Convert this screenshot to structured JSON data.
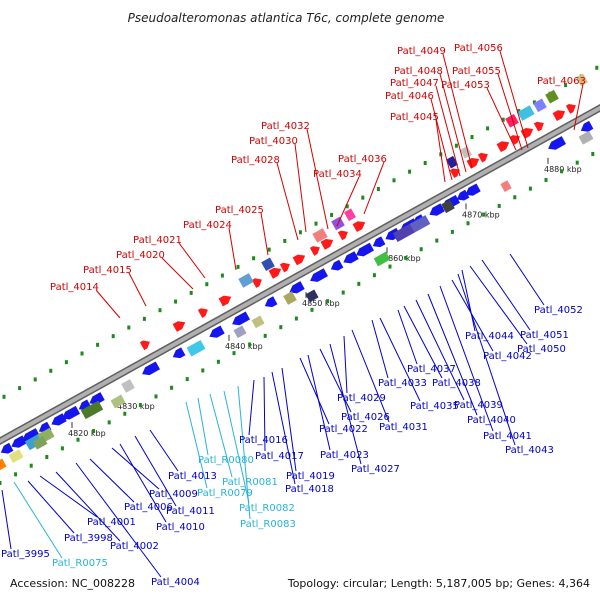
{
  "title": "Pseudoalteromonas atlantica T6c, complete genome",
  "footer": {
    "accession": "Accession: NC_008228",
    "summary": "Topology: circular; Length: 5,187,005 bp; Genes: 4,364"
  },
  "colors": {
    "top_label": "#d40000",
    "bottom_label": "#0000cc",
    "rna_label": "#27b4d6",
    "forward_gene": "#ff1a1a",
    "reverse_gene": "#1515ee",
    "rna_gene": "#40c8e8",
    "scale": "#b0b0b0",
    "tick": "#1e8a1e"
  },
  "scale_marks": [
    {
      "text": "4820 kbp"
    },
    {
      "text": "4830 kbp"
    },
    {
      "text": "4840 kbp"
    },
    {
      "text": "4850 kbp"
    },
    {
      "text": "4860 kbp"
    },
    {
      "text": "4870 kbp"
    },
    {
      "text": "4880 kbp"
    }
  ],
  "top_labels": [
    {
      "text": "Patl_4014"
    },
    {
      "text": "Patl_4015"
    },
    {
      "text": "Patl_4020"
    },
    {
      "text": "Patl_4021"
    },
    {
      "text": "Patl_4024"
    },
    {
      "text": "Patl_4025"
    },
    {
      "text": "Patl_4028"
    },
    {
      "text": "Patl_4030"
    },
    {
      "text": "Patl_4032"
    },
    {
      "text": "Patl_4034"
    },
    {
      "text": "Patl_4036"
    },
    {
      "text": "Patl_4045"
    },
    {
      "text": "Patl_4046"
    },
    {
      "text": "Patl_4047"
    },
    {
      "text": "Patl_4048"
    },
    {
      "text": "Patl_4049"
    },
    {
      "text": "Patl_4053"
    },
    {
      "text": "Patl_4055"
    },
    {
      "text": "Patl_4056"
    },
    {
      "text": "Patl_4063"
    }
  ],
  "bottom_labels": [
    {
      "text": "Patl_3995",
      "rna": false
    },
    {
      "text": "Patl_R0075",
      "rna": true
    },
    {
      "text": "Patl_3998",
      "rna": false
    },
    {
      "text": "Patl_4001",
      "rna": false
    },
    {
      "text": "Patl_4002",
      "rna": false
    },
    {
      "text": "Patl_4004",
      "rna": false
    },
    {
      "text": "Patl_4006",
      "rna": false
    },
    {
      "text": "Patl_4009",
      "rna": false
    },
    {
      "text": "Patl_4010",
      "rna": false
    },
    {
      "text": "Patl_4011",
      "rna": false
    },
    {
      "text": "Patl_4013",
      "rna": false
    },
    {
      "text": "Patl_R0079",
      "rna": true
    },
    {
      "text": "Patl_R0080",
      "rna": true
    },
    {
      "text": "Patl_R0081",
      "rna": true
    },
    {
      "text": "Patl_R0082",
      "rna": true
    },
    {
      "text": "Patl_R0083",
      "rna": true
    },
    {
      "text": "Patl_4016",
      "rna": false
    },
    {
      "text": "Patl_4017",
      "rna": false
    },
    {
      "text": "Patl_4018",
      "rna": false
    },
    {
      "text": "Patl_4019",
      "rna": false
    },
    {
      "text": "Patl_4022",
      "rna": false
    },
    {
      "text": "Patl_4023",
      "rna": false
    },
    {
      "text": "Patl_4026",
      "rna": false
    },
    {
      "text": "Patl_4027",
      "rna": false
    },
    {
      "text": "Patl_4029",
      "rna": false
    },
    {
      "text": "Patl_4031",
      "rna": false
    },
    {
      "text": "Patl_4033",
      "rna": false
    },
    {
      "text": "Patl_4035",
      "rna": false
    },
    {
      "text": "Patl_4037",
      "rna": false
    },
    {
      "text": "Patl_4038",
      "rna": false
    },
    {
      "text": "Patl_4039",
      "rna": false
    },
    {
      "text": "Patl_4040",
      "rna": false
    },
    {
      "text": "Patl_4041",
      "rna": false
    },
    {
      "text": "Patl_4042",
      "rna": false
    },
    {
      "text": "Patl_4043",
      "rna": false
    },
    {
      "text": "Patl_4044",
      "rna": false
    },
    {
      "text": "Patl_4050",
      "rna": false
    },
    {
      "text": "Patl_4051",
      "rna": false
    },
    {
      "text": "Patl_4052",
      "rna": false
    }
  ]
}
